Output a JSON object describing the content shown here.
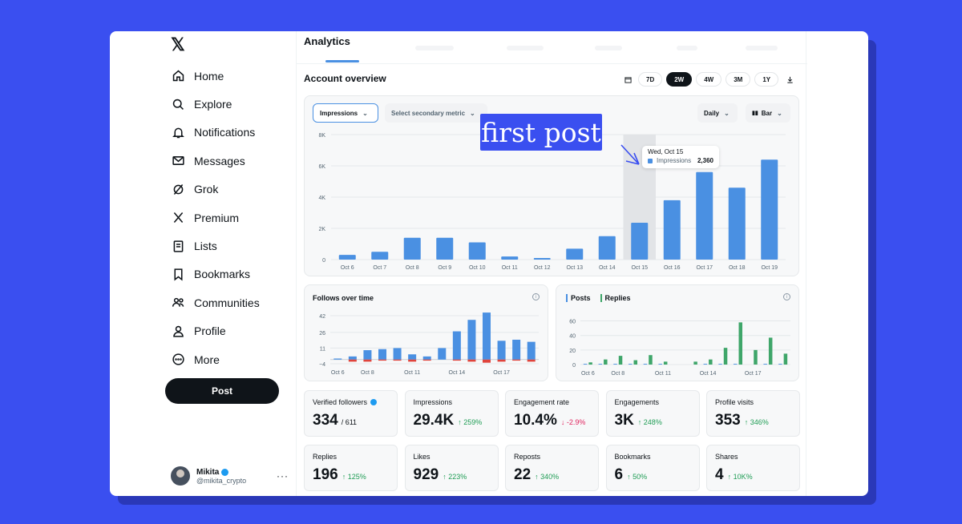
{
  "sidebar": {
    "logo": "𝕏",
    "items": [
      {
        "label": "Home",
        "icon": "home-icon"
      },
      {
        "label": "Explore",
        "icon": "search-icon"
      },
      {
        "label": "Notifications",
        "icon": "bell-icon"
      },
      {
        "label": "Messages",
        "icon": "envelope-icon"
      },
      {
        "label": "Grok",
        "icon": "grok-icon"
      },
      {
        "label": "Premium",
        "icon": "x-logo-icon"
      },
      {
        "label": "Lists",
        "icon": "list-icon"
      },
      {
        "label": "Bookmarks",
        "icon": "bookmark-icon"
      },
      {
        "label": "Communities",
        "icon": "people-icon"
      },
      {
        "label": "Profile",
        "icon": "person-icon"
      },
      {
        "label": "More",
        "icon": "more-circle-icon"
      }
    ],
    "post_label": "Post",
    "profile": {
      "name": "Mikita",
      "handle": "@mikita_crypto"
    }
  },
  "main": {
    "title": "Analytics",
    "section_title": "Account overview",
    "ranges": [
      "7D",
      "2W",
      "4W",
      "3M",
      "1Y"
    ],
    "active_range": "2W"
  },
  "impressions_chart": {
    "primary_metric": "Impressions",
    "secondary_metric": "Select secondary metric",
    "granularity": "Daily",
    "chart_style": "Bar",
    "annotation": "first post",
    "tooltip": {
      "date": "Wed, Oct 15",
      "metric": "Impressions",
      "value": "2,360"
    }
  },
  "follows_card": {
    "title": "Follows over time"
  },
  "posts_card": {
    "legend_posts": "Posts",
    "legend_replies": "Replies"
  },
  "stats": [
    {
      "label": "Verified followers",
      "value": "334",
      "sub": "/ 611",
      "verified": true
    },
    {
      "label": "Impressions",
      "value": "29.4K",
      "delta": "↑ 259%",
      "dir": "up"
    },
    {
      "label": "Engagement rate",
      "value": "10.4%",
      "delta": "↓ -2.9%",
      "dir": "down"
    },
    {
      "label": "Engagements",
      "value": "3K",
      "delta": "↑ 248%",
      "dir": "up"
    },
    {
      "label": "Profile visits",
      "value": "353",
      "delta": "↑ 346%",
      "dir": "up"
    },
    {
      "label": "Replies",
      "value": "196",
      "delta": "↑ 125%",
      "dir": "up"
    },
    {
      "label": "Likes",
      "value": "929",
      "delta": "↑ 223%",
      "dir": "up"
    },
    {
      "label": "Reposts",
      "value": "22",
      "delta": "↑ 340%",
      "dir": "up"
    },
    {
      "label": "Bookmarks",
      "value": "6",
      "delta": "↑ 50%",
      "dir": "up"
    },
    {
      "label": "Shares",
      "value": "4",
      "delta": "↑ 10K%",
      "dir": "up"
    }
  ],
  "chart_data": [
    {
      "type": "bar",
      "title": "",
      "categories": [
        "Oct 6",
        "Oct 7",
        "Oct 8",
        "Oct 9",
        "Oct 10",
        "Oct 11",
        "Oct 12",
        "Oct 13",
        "Oct 14",
        "Oct 15",
        "Oct 16",
        "Oct 17",
        "Oct 18",
        "Oct 19"
      ],
      "series": [
        {
          "name": "Impressions",
          "values": [
            300,
            500,
            1400,
            1400,
            1100,
            200,
            100,
            700,
            1500,
            2360,
            3800,
            5600,
            4600,
            6400
          ]
        }
      ],
      "yticks": [
        "0",
        "2K",
        "4K",
        "6K",
        "8K"
      ],
      "ylim": [
        0,
        8000
      ],
      "highlight": "Oct 15",
      "color": "#4a90e2"
    },
    {
      "type": "bar",
      "title": "Follows over time",
      "categories": [
        "Oct 6",
        "Oct 7",
        "Oct 8",
        "Oct 9",
        "Oct 10",
        "Oct 11",
        "Oct 12",
        "Oct 13",
        "Oct 14",
        "Oct 15",
        "Oct 16",
        "Oct 17",
        "Oct 18",
        "Oct 19"
      ],
      "xtick_labels": [
        "Oct 6",
        "Oct 8",
        "Oct 11",
        "Oct 14",
        "Oct 17"
      ],
      "series": [
        {
          "values": [
            1,
            3,
            9,
            10,
            11,
            5,
            3,
            11,
            27,
            38,
            45,
            18,
            19,
            17
          ],
          "color": "#4a90e2"
        },
        {
          "values": [
            0,
            -2,
            -2,
            -1,
            -1,
            -2,
            -1,
            0,
            -1,
            -2,
            -3,
            -2,
            -1,
            -2
          ],
          "color": "#e0443c"
        }
      ],
      "yticks": [
        "−4",
        "11",
        "26",
        "42"
      ],
      "ylim": [
        -4,
        42
      ],
      "tick_values": [
        -4,
        11,
        26,
        42
      ]
    },
    {
      "type": "bar",
      "title": "",
      "categories": [
        "Oct 6",
        "Oct 7",
        "Oct 8",
        "Oct 9",
        "Oct 10",
        "Oct 11",
        "Oct 12",
        "Oct 13",
        "Oct 14",
        "Oct 15",
        "Oct 16",
        "Oct 17",
        "Oct 18",
        "Oct 19"
      ],
      "xtick_labels": [
        "Oct 6",
        "Oct 8",
        "Oct 11",
        "Oct 14",
        "Oct 17"
      ],
      "series": [
        {
          "name": "Posts",
          "values": [
            1,
            1,
            1,
            1,
            1,
            1,
            0,
            0,
            1,
            1,
            1,
            0,
            1,
            1
          ],
          "color": "#4a90e2"
        },
        {
          "name": "Replies",
          "values": [
            3,
            7,
            12,
            6,
            13,
            4,
            0,
            4,
            7,
            23,
            58,
            20,
            37,
            15
          ],
          "color": "#3fa66a"
        }
      ],
      "yticks": [
        "0",
        "20",
        "40",
        "60"
      ],
      "ylim": [
        0,
        65
      ]
    }
  ]
}
